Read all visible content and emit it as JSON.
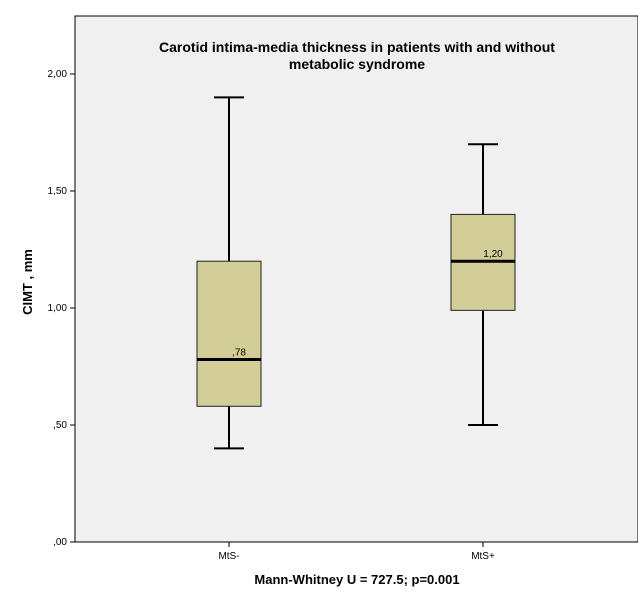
{
  "chart_data": {
    "type": "box",
    "title_lines": [
      "Carotid intima-media thickness in patients with and without",
      "metabolic syndrome"
    ],
    "ylabel": "CIMT , mm",
    "xlabel": "Mann-Whitney U = 727.5; p=0.001",
    "ylim": [
      0.0,
      2.2
    ],
    "yticks": [
      {
        "value": 0.0,
        "label": ",00"
      },
      {
        "value": 0.5,
        "label": ",50"
      },
      {
        "value": 1.0,
        "label": "1,00"
      },
      {
        "value": 1.5,
        "label": "1,50"
      },
      {
        "value": 2.0,
        "label": "2,00"
      }
    ],
    "grid": false,
    "categories": [
      "MtS-",
      "MtS+"
    ],
    "boxes": [
      {
        "category": "MtS-",
        "min": 0.4,
        "q1": 0.58,
        "median": 0.78,
        "q3": 1.2,
        "max": 1.9,
        "median_label": ",78"
      },
      {
        "category": "MtS+",
        "min": 0.5,
        "q1": 0.99,
        "median": 1.2,
        "q3": 1.4,
        "max": 1.7,
        "median_label": "1,20"
      }
    ],
    "colors": {
      "plot_bg": "#f0f0f0",
      "box_fill": "#d3ce97",
      "line": "#000000"
    }
  }
}
